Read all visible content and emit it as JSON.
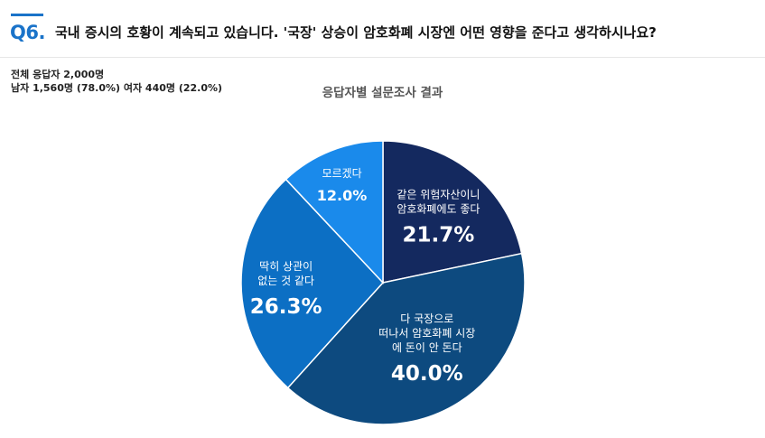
{
  "question": {
    "number": "Q6.",
    "text": "국내 증시의 호황이 계속되고 있습니다. '국장' 상승이 암호화폐 시장엔 어떤 영향을 준다고 생각하시나요?"
  },
  "sample": {
    "total": "전체 응답자 2,000명",
    "breakdown": "남자 1,560명 (78.0%) 여자 440명 (22.0%)"
  },
  "chart_data": {
    "type": "pie",
    "title": "응답자별 설문조사 결과",
    "slices": [
      {
        "label_lines": [
          "같은 위험자산이니",
          "암호화폐에도 좋다"
        ],
        "value": 21.7,
        "display": "21.7%",
        "color": "#14295f"
      },
      {
        "label_lines": [
          "다 국장으로",
          "떠나서 암호화폐 시장",
          "에 돈이 안 돈다"
        ],
        "value": 40.0,
        "display": "40.0%",
        "color": "#0d4a7f"
      },
      {
        "label_lines": [
          "딱히 상관이",
          "없는 것 같다"
        ],
        "value": 26.3,
        "display": "26.3%",
        "color": "#0c6fc4"
      },
      {
        "label_lines": [
          "모르겠다"
        ],
        "value": 12.0,
        "display": "12.0%",
        "color": "#1a8aeb"
      }
    ]
  }
}
